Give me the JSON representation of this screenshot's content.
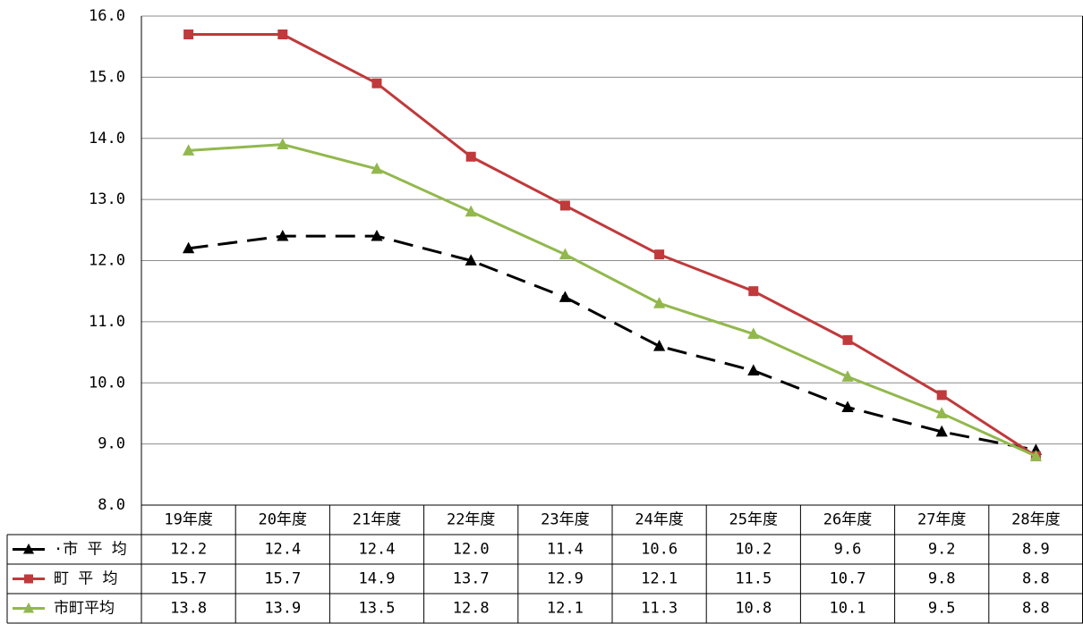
{
  "chart_data": {
    "type": "line",
    "title": "",
    "xlabel": "",
    "ylabel": "",
    "categories": [
      "19年度",
      "20年度",
      "21年度",
      "22年度",
      "23年度",
      "24年度",
      "25年度",
      "26年度",
      "27年度",
      "28年度"
    ],
    "ylim": [
      8.0,
      16.0
    ],
    "yticks": [
      "8.0",
      "9.0",
      "10.0",
      "11.0",
      "12.0",
      "13.0",
      "14.0",
      "15.0",
      "16.0"
    ],
    "grid": true,
    "legend": "data-table-left",
    "series": [
      {
        "name": "·市 平 均",
        "color": "#000000",
        "marker": "triangle",
        "dash": true,
        "values": [
          12.2,
          12.4,
          12.4,
          12.0,
          11.4,
          10.6,
          10.2,
          9.6,
          9.2,
          8.9
        ],
        "labels": [
          "12.2",
          "12.4",
          "12.4",
          "12.0",
          "11.4",
          "10.6",
          "10.2",
          "9.6",
          "9.2",
          "8.9"
        ]
      },
      {
        "name": "町 平 均",
        "color": "#C0393B",
        "marker": "square",
        "dash": false,
        "values": [
          15.7,
          15.7,
          14.9,
          13.7,
          12.9,
          12.1,
          11.5,
          10.7,
          9.8,
          8.8
        ],
        "labels": [
          "15.7",
          "15.7",
          "14.9",
          "13.7",
          "12.9",
          "12.1",
          "11.5",
          "10.7",
          "9.8",
          "8.8"
        ]
      },
      {
        "name": "市町平均",
        "color": "#92B84D",
        "marker": "triangle",
        "dash": false,
        "values": [
          13.8,
          13.9,
          13.5,
          12.8,
          12.1,
          11.3,
          10.8,
          10.1,
          9.5,
          8.8
        ],
        "labels": [
          "13.8",
          "13.9",
          "13.5",
          "12.8",
          "12.1",
          "11.3",
          "10.8",
          "10.1",
          "9.5",
          "8.8"
        ]
      }
    ]
  }
}
